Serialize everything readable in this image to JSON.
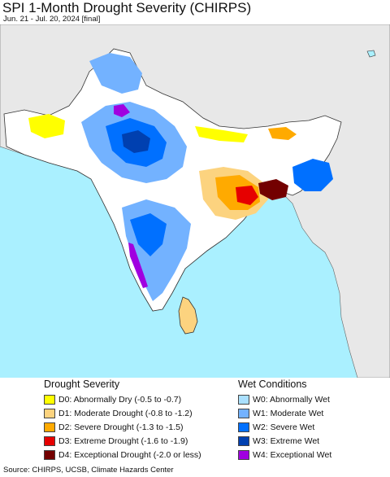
{
  "header": {
    "title": "SPI 1-Month Drought Severity (CHIRPS)",
    "subtitle": "Jun. 21 - Jul. 20, 2024 [final]"
  },
  "colors": {
    "ocean": "#aaf0ff",
    "land_outside": "#e8e8e8",
    "land_inside": "#ffffff",
    "border": "#333333",
    "d0": "#ffff00",
    "d1": "#fcd37f",
    "d2": "#ffaa00",
    "d3": "#e60000",
    "d4": "#730000",
    "w0": "#aae0ff",
    "w1": "#73b2ff",
    "w2": "#0070ff",
    "w3": "#0040b0",
    "w4": "#a000e0"
  },
  "legend": {
    "drought": {
      "heading": "Drought Severity",
      "items": [
        {
          "label": "D0: Abnormally Dry (-0.5 to -0.7)",
          "color": "#ffff00"
        },
        {
          "label": "D1: Moderate Drought (-0.8 to -1.2)",
          "color": "#fcd37f"
        },
        {
          "label": "D2: Severe Drought (-1.3 to -1.5)",
          "color": "#ffaa00"
        },
        {
          "label": "D3: Extreme Drought (-1.6 to -1.9)",
          "color": "#e60000"
        },
        {
          "label": "D4: Exceptional Drought (-2.0 or less)",
          "color": "#730000"
        }
      ]
    },
    "wet": {
      "heading": "Wet Conditions",
      "items": [
        {
          "label": "W0: Abnormally Wet",
          "color": "#aae0ff"
        },
        {
          "label": "W1: Moderate Wet",
          "color": "#73b2ff"
        },
        {
          "label": "W2: Severe Wet",
          "color": "#0070ff"
        },
        {
          "label": "W3: Extreme Wet",
          "color": "#0040b0"
        },
        {
          "label": "W4: Exceptional Wet",
          "color": "#a000e0"
        }
      ]
    }
  },
  "footer": {
    "source": "Source: CHIRPS, UCSB, Climate Hazards Center"
  }
}
